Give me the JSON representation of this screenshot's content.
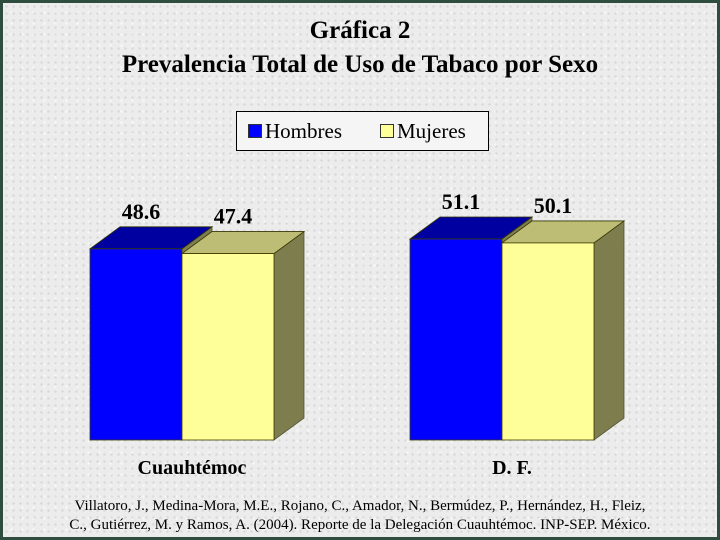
{
  "title_line1": "Gráfica 2",
  "title_line2": "Prevalencia Total de Uso de Tabaco por Sexo",
  "chart_data": {
    "type": "bar",
    "categories": [
      "Cuauhtémoc",
      "D. F."
    ],
    "series": [
      {
        "name": "Hombres",
        "values": [
          48.6,
          51.1
        ],
        "color": "#0000ff",
        "top_color": "#0000a0"
      },
      {
        "name": "Mujeres",
        "values": [
          47.4,
          50.1
        ],
        "color": "#ffff99",
        "top_color": "#bdbd75"
      }
    ],
    "side_color": "#7d7d4d",
    "value_labels": [
      [
        "48.6",
        "51.1"
      ],
      [
        "47.4",
        "50.1"
      ]
    ],
    "ylim": [
      0,
      51.1
    ],
    "legend_position": "top-center",
    "grid": false,
    "three_d": true
  },
  "citation_line1": "Villatoro, J., Medina-Mora, M.E., Rojano, C., Amador, N., Bermúdez, P., Hernández, H., Fleiz,",
  "citation_line2": "C., Gutiérrez, M. y Ramos, A. (2004). Reporte de la Delegación Cuauhtémoc. INP-SEP. México."
}
